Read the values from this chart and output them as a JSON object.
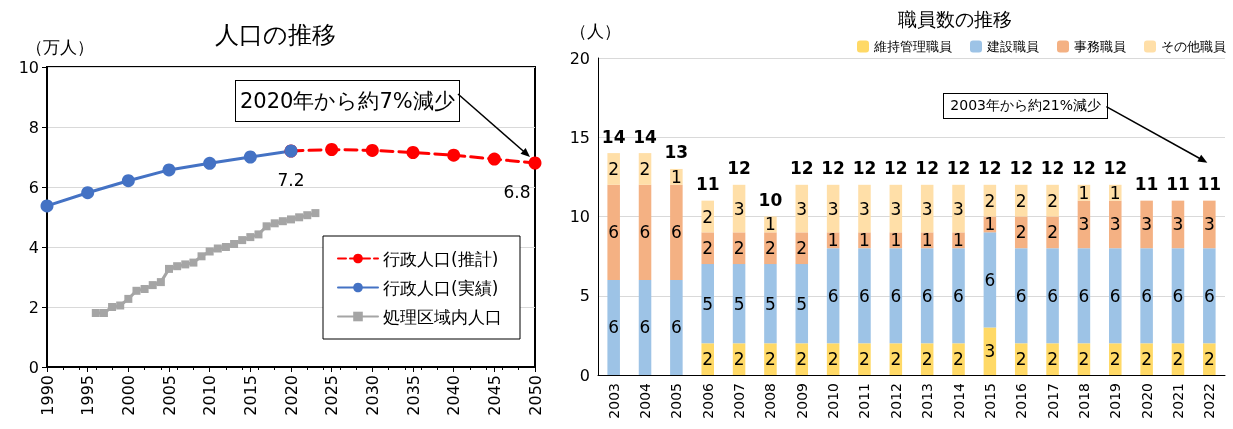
{
  "chart_data": [
    {
      "type": "line",
      "title": "人口の推移",
      "ylabel": "（万人）",
      "xlim": [
        1990,
        2050
      ],
      "xticks": [
        1990,
        1995,
        2000,
        2005,
        2010,
        2015,
        2020,
        2025,
        2030,
        2035,
        2040,
        2045,
        2050
      ],
      "ylim": [
        0,
        10
      ],
      "yticks": [
        0,
        2,
        4,
        6,
        8,
        10
      ],
      "grid": "y",
      "legend": "bottom right",
      "annotations": [
        "2020年から約7%減少"
      ],
      "series": [
        {
          "name": "行政人口(推計)",
          "color": "#ff0000",
          "line_style": "dashed",
          "marker": "circle",
          "x": [
            2020,
            2025,
            2030,
            2035,
            2040,
            2045,
            2050
          ],
          "values": [
            7.2,
            7.25,
            7.22,
            7.15,
            7.06,
            6.93,
            6.8
          ],
          "value_labels": [
            null,
            null,
            null,
            null,
            null,
            null,
            "6.8"
          ]
        },
        {
          "name": "行政人口(実績)",
          "color": "#4472c4",
          "line_style": "solid",
          "marker": "circle",
          "x": [
            1990,
            1995,
            2000,
            2005,
            2010,
            2015,
            2020
          ],
          "values": [
            5.37,
            5.81,
            6.21,
            6.57,
            6.79,
            7.0,
            7.2
          ],
          "value_labels": [
            null,
            null,
            null,
            null,
            null,
            null,
            "7.2"
          ]
        },
        {
          "name": "処理区域内人口",
          "color": "#a5a5a5",
          "line_style": "solid",
          "marker": "square",
          "x": [
            1996,
            1997,
            1998,
            1999,
            2000,
            2001,
            2002,
            2003,
            2004,
            2005,
            2006,
            2007,
            2008,
            2009,
            2010,
            2011,
            2012,
            2013,
            2014,
            2015,
            2016,
            2017,
            2018,
            2019,
            2020,
            2021,
            2022,
            2023
          ],
          "values": [
            1.8,
            1.8,
            2.0,
            2.05,
            2.27,
            2.54,
            2.6,
            2.73,
            2.83,
            3.27,
            3.36,
            3.42,
            3.48,
            3.69,
            3.85,
            3.95,
            4.0,
            4.1,
            4.23,
            4.33,
            4.42,
            4.69,
            4.79,
            4.86,
            4.92,
            4.99,
            5.06,
            5.13
          ]
        }
      ]
    },
    {
      "type": "bar",
      "stacked": true,
      "title": "職員数の推移",
      "ylabel": "（人）",
      "categories": [
        "2003",
        "2004",
        "2005",
        "2006",
        "2007",
        "2008",
        "2009",
        "2010",
        "2011",
        "2012",
        "2013",
        "2014",
        "2015",
        "2016",
        "2017",
        "2018",
        "2019",
        "2020",
        "2021",
        "2022"
      ],
      "ylim": [
        0,
        20
      ],
      "yticks": [
        0,
        5,
        10,
        15,
        20
      ],
      "grid": "y",
      "legend": "top right",
      "totals": [
        "14",
        "14",
        "13",
        "11",
        "12",
        "10",
        "12",
        "12",
        "12",
        "12",
        "12",
        "12",
        "12",
        "12",
        "12",
        "12",
        "12",
        "11",
        "11",
        "11"
      ],
      "annotations": [
        "2003年から約21%減少"
      ],
      "series": [
        {
          "name": "維持管理職員",
          "color": "#ffd966",
          "values": [
            0,
            0,
            0,
            2,
            2,
            2,
            2,
            2,
            2,
            2,
            2,
            2,
            3,
            2,
            2,
            2,
            2,
            2,
            2,
            2
          ],
          "value_labels": [
            null,
            null,
            null,
            "2",
            "2",
            "2",
            "2",
            "2",
            "2",
            "2",
            "2",
            "2",
            "3",
            "2",
            "2",
            "2",
            "2",
            "2",
            "2",
            "2"
          ]
        },
        {
          "name": "建設職員",
          "color": "#9dc3e6",
          "values": [
            6,
            6,
            6,
            5,
            5,
            5,
            5,
            6,
            6,
            6,
            6,
            6,
            6,
            6,
            6,
            6,
            6,
            6,
            6,
            6
          ],
          "value_labels": [
            "6",
            "6",
            "6",
            "5",
            "5",
            "5",
            "5",
            "6",
            "6",
            "6",
            "6",
            "6",
            "6",
            "6",
            "6",
            "6",
            "6",
            "6",
            "6",
            "6"
          ]
        },
        {
          "name": "事務職員",
          "color": "#f4b183",
          "values": [
            6,
            6,
            6,
            2,
            2,
            2,
            2,
            1,
            1,
            1,
            1,
            1,
            1,
            2,
            2,
            3,
            3,
            3,
            3,
            3
          ],
          "value_labels": [
            "6",
            "6",
            "6",
            "2",
            "2",
            "2",
            "2",
            "1",
            "1",
            "1",
            "1",
            "1",
            "1",
            "2",
            "2",
            "3",
            "3",
            "3",
            "3",
            "3"
          ]
        },
        {
          "name": "その他職員",
          "color": "#ffdfa8",
          "values": [
            2,
            2,
            1,
            2,
            3,
            1,
            3,
            3,
            3,
            3,
            3,
            3,
            2,
            2,
            2,
            1,
            1,
            0,
            0,
            0
          ],
          "value_labels": [
            "2",
            "2",
            "1",
            "2",
            "3",
            "1",
            "3",
            "3",
            "3",
            "3",
            "3",
            "3",
            "2",
            "2",
            "2",
            "1",
            "1",
            null,
            null,
            null
          ]
        }
      ]
    }
  ]
}
